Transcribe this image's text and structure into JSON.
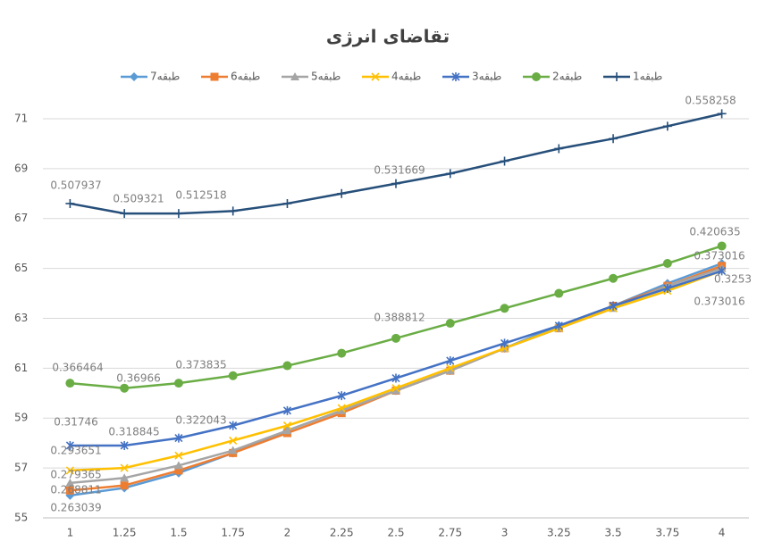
{
  "chart_data": {
    "type": "line",
    "title": "تقاضای انرژی",
    "categories": [
      "1",
      "1.25",
      "1.5",
      "1.75",
      "2",
      "2.25",
      "2.5",
      "2.75",
      "3",
      "3.25",
      "3.5",
      "3.75",
      "4"
    ],
    "ylim": [
      55,
      72
    ],
    "yticks": [
      55,
      57,
      59,
      61,
      63,
      65,
      67,
      69,
      71
    ],
    "grid": true,
    "legend": "top",
    "series": [
      {
        "name": "1طبقه",
        "color": "#264f7a",
        "marker": "plus",
        "values": [
          67.6,
          67.2,
          67.2,
          67.3,
          67.6,
          68.0,
          68.4,
          68.8,
          69.3,
          69.8,
          70.2,
          70.7,
          71.2
        ]
      },
      {
        "name": "2طبقه",
        "color": "#6aad45",
        "marker": "circle",
        "values": [
          60.4,
          60.2,
          60.4,
          60.7,
          61.1,
          61.6,
          62.2,
          62.8,
          63.4,
          64.0,
          64.6,
          65.2,
          65.9
        ]
      },
      {
        "name": "3طبقه",
        "color": "#4472c4",
        "marker": "star",
        "values": [
          57.9,
          57.9,
          58.2,
          58.7,
          59.3,
          59.9,
          60.6,
          61.3,
          62.0,
          62.7,
          63.5,
          64.2,
          64.9
        ]
      },
      {
        "name": "4طبقه",
        "color": "#ffc000",
        "marker": "x",
        "values": [
          56.9,
          57.0,
          57.5,
          58.1,
          58.7,
          59.4,
          60.2,
          61.0,
          61.8,
          62.6,
          63.4,
          64.1,
          64.9
        ]
      },
      {
        "name": "5طبقه",
        "color": "#a5a5a5",
        "marker": "triangle",
        "values": [
          56.4,
          56.6,
          57.1,
          57.7,
          58.5,
          59.3,
          60.1,
          60.9,
          61.8,
          62.6,
          63.4,
          64.3,
          65.0
        ]
      },
      {
        "name": "6طبقه",
        "color": "#ed7d31",
        "marker": "square",
        "values": [
          56.1,
          56.3,
          56.9,
          57.6,
          58.4,
          59.2,
          60.1,
          60.9,
          61.8,
          62.6,
          63.5,
          64.3,
          65.1
        ]
      },
      {
        "name": "7طبقه",
        "color": "#5b9bd5",
        "marker": "diamond",
        "values": [
          55.9,
          56.2,
          56.8,
          57.6,
          58.5,
          59.3,
          60.1,
          60.9,
          61.8,
          62.7,
          63.5,
          64.4,
          65.2
        ]
      }
    ],
    "annotations": [
      "0.507937",
      "0.509321",
      "0.512518",
      "0.531669",
      "0.558258",
      "0.420635",
      "0.373016",
      "0.3253",
      "0.373016",
      "0.388812",
      "0.366464",
      "0.36966",
      "0.373835",
      "0.31746",
      "0.318845",
      "0.322043",
      "0.293651",
      "0.279365",
      "0.268811",
      "0.263039"
    ]
  }
}
